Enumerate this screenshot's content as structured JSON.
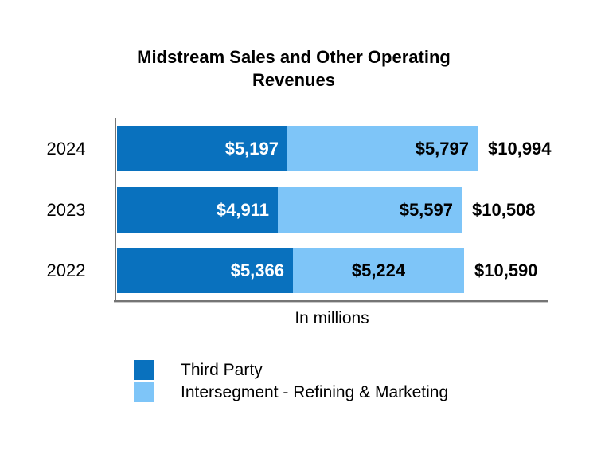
{
  "title": "Midstream Sales and Other Operating Revenues",
  "chart_data": {
    "type": "bar",
    "orientation": "horizontal",
    "stacked": true,
    "title": "Midstream Sales and Other Operating Revenues",
    "xlabel": "In millions",
    "categories": [
      "2024",
      "2023",
      "2022"
    ],
    "series": [
      {
        "name": "Third Party",
        "color": "#0971BE",
        "label_color": "#ffffff",
        "values": [
          5197,
          4911,
          5366
        ],
        "labels": [
          "$5,197",
          "$4,911",
          "$5,366"
        ],
        "label_align": [
          "right",
          "right",
          "right"
        ]
      },
      {
        "name": "Intersegment - Refining & Marketing",
        "color": "#7EC5F8",
        "label_color": "#000000",
        "values": [
          5797,
          5597,
          5224
        ],
        "labels": [
          "$5,797",
          "$5,597",
          "$5,224"
        ],
        "label_align": [
          "right",
          "right",
          "center"
        ]
      }
    ],
    "totals": [
      10994,
      10508,
      10590
    ],
    "total_labels": [
      "$10,994",
      "$10,508",
      "$10,590"
    ],
    "legend_position": "bottom-left",
    "axis_color": "#757575",
    "grid": false
  }
}
